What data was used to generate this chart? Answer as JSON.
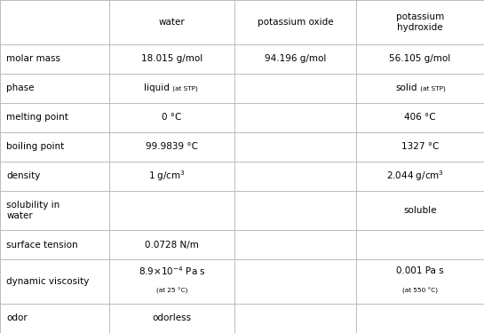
{
  "col_headers": [
    "",
    "water",
    "potassium oxide",
    "potassium\nhydroxide"
  ],
  "rows": [
    {
      "label": "molar mass",
      "water": "18.015 g/mol",
      "ox": "94.196 g/mol",
      "koh": "56.105 g/mol"
    },
    {
      "label": "phase",
      "water": "phase_liquid",
      "ox": "",
      "koh": "phase_solid"
    },
    {
      "label": "melting point",
      "water": "0 °C",
      "ox": "",
      "koh": "406 °C"
    },
    {
      "label": "boiling point",
      "water": "99.9839 °C",
      "ox": "",
      "koh": "1327 °C"
    },
    {
      "label": "density",
      "water": "density_water",
      "ox": "",
      "koh": "density_koh"
    },
    {
      "label": "solubility in\nwater",
      "water": "",
      "ox": "",
      "koh": "soluble"
    },
    {
      "label": "surface tension",
      "water": "0.0728 N/m",
      "ox": "",
      "koh": ""
    },
    {
      "label": "dynamic viscosity",
      "water": "visc_water",
      "ox": "",
      "koh": "visc_koh"
    },
    {
      "label": "odor",
      "water": "odorless",
      "ox": "",
      "koh": ""
    }
  ],
  "bg_color": "#ffffff",
  "line_color": "#bbbbbb",
  "text_color": "#000000",
  "col_bounds": [
    0.0,
    0.225,
    0.485,
    0.735,
    1.0
  ],
  "row_heights_rel": [
    1.5,
    1.0,
    1.0,
    1.0,
    1.0,
    1.0,
    1.35,
    1.0,
    1.5,
    1.0
  ],
  "main_fs": 7.5,
  "small_fs": 5.2,
  "label_fs": 7.5
}
